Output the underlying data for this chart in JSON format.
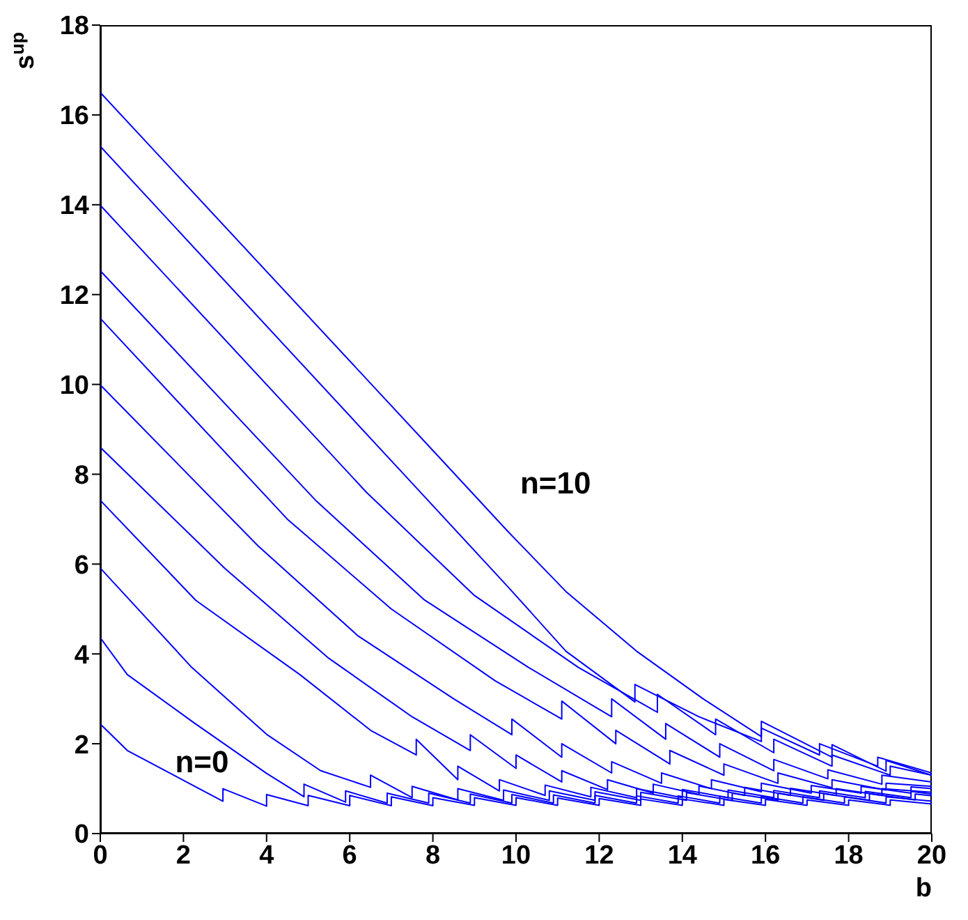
{
  "chart_data": {
    "type": "line",
    "xlabel": "b",
    "ylabel": "s$^{up}$",
    "xlim": [
      0,
      20
    ],
    "xticks": [
      0,
      2,
      4,
      6,
      8,
      10,
      12,
      14,
      16,
      18,
      20
    ],
    "ylim": [
      0,
      18
    ],
    "yticks": [
      0,
      2,
      4,
      6,
      8,
      10,
      12,
      14,
      16,
      18
    ],
    "grid": false,
    "legend": false,
    "marker": "none",
    "line_style": "solid",
    "annotations": [
      "n=10",
      "n=0"
    ],
    "series": [
      {
        "color": "#0000ff",
        "x": [
          0,
          0.65,
          2.95,
          2.95,
          4.0,
          4.0,
          5.0,
          5.0,
          6.0,
          6.0,
          7.0,
          7.0,
          8,
          8,
          9,
          9,
          10,
          10,
          11,
          11,
          12,
          12,
          13,
          13,
          14,
          14,
          15,
          15,
          16,
          16,
          17,
          17,
          18,
          18,
          19,
          19,
          20
        ],
        "values": [
          2.44,
          1.85,
          0.72,
          1.0,
          0.61,
          0.87,
          0.62,
          0.85,
          0.62,
          0.85,
          0.62,
          0.82,
          0.62,
          0.8,
          0.63,
          0.8,
          0.63,
          0.8,
          0.63,
          0.79,
          0.63,
          0.78,
          0.63,
          0.77,
          0.63,
          0.77,
          0.63,
          0.76,
          0.63,
          0.76,
          0.63,
          0.75,
          0.63,
          0.75,
          0.63,
          0.75,
          0.66
        ]
      },
      {
        "color": "#0000ff",
        "x": [
          0,
          0.65,
          2.25,
          4.0,
          4.9,
          4.9,
          5.9,
          5.9,
          6.9,
          6.9,
          7.9,
          7.9,
          8.9,
          8.9,
          9.9,
          9.9,
          10.9,
          10.9,
          11.9,
          11.9,
          12.9,
          12.9,
          13.9,
          13.9,
          14.9,
          14.9,
          15.9,
          15.9,
          16.9,
          16.9,
          17.9,
          17.9,
          18.9,
          18.9,
          20
        ],
        "values": [
          4.36,
          3.54,
          2.47,
          1.34,
          0.82,
          1.1,
          0.7,
          0.95,
          0.68,
          0.9,
          0.68,
          0.9,
          0.68,
          0.88,
          0.68,
          0.87,
          0.68,
          0.86,
          0.68,
          0.85,
          0.68,
          0.84,
          0.68,
          0.84,
          0.68,
          0.83,
          0.68,
          0.83,
          0.68,
          0.82,
          0.68,
          0.82,
          0.68,
          0.82,
          0.72
        ]
      },
      {
        "color": "#0000ff",
        "x": [
          0,
          2.2,
          4.0,
          5.3,
          6.5,
          6.5,
          7.5,
          7.5,
          8.6,
          8.6,
          9.7,
          9.7,
          10.8,
          10.8,
          11.9,
          11.9,
          13,
          13,
          14.1,
          14.1,
          15.2,
          15.2,
          16.3,
          16.3,
          17.4,
          17.4,
          18.5,
          18.5,
          19.6,
          19.6,
          20
        ],
        "values": [
          5.91,
          3.7,
          2.21,
          1.4,
          1.03,
          1.3,
          0.8,
          1.05,
          0.75,
          1.0,
          0.74,
          0.97,
          0.74,
          0.95,
          0.74,
          0.93,
          0.74,
          0.92,
          0.74,
          0.91,
          0.74,
          0.9,
          0.74,
          0.9,
          0.74,
          0.89,
          0.74,
          0.89,
          0.75,
          0.88,
          0.84
        ]
      },
      {
        "color": "#0000ff",
        "x": [
          0,
          2.3,
          4.8,
          6.5,
          7.6,
          7.6,
          8.6,
          8.6,
          9.6,
          9.6,
          10.7,
          10.7,
          11.8,
          11.8,
          12.9,
          12.9,
          14,
          14,
          15.1,
          15.1,
          16.2,
          16.2,
          17.3,
          17.3,
          18.4,
          18.4,
          19.5,
          19.5,
          20
        ],
        "values": [
          7.42,
          5.19,
          3.54,
          2.3,
          1.75,
          2.1,
          1.2,
          1.5,
          0.95,
          1.2,
          0.85,
          1.08,
          0.82,
          1.03,
          0.8,
          1.0,
          0.8,
          0.98,
          0.8,
          0.97,
          0.8,
          0.96,
          0.8,
          0.95,
          0.8,
          0.94,
          0.8,
          0.94,
          0.88
        ]
      },
      {
        "color": "#0000ff",
        "x": [
          0,
          3,
          5.5,
          7.5,
          8.9,
          8.9,
          10,
          10,
          11.1,
          11.1,
          12.2,
          12.2,
          13.3,
          13.3,
          14.4,
          14.4,
          15.5,
          15.5,
          16.6,
          16.6,
          17.7,
          17.7,
          18.8,
          18.8,
          20
        ],
        "values": [
          8.6,
          5.9,
          3.9,
          2.6,
          1.85,
          2.2,
          1.45,
          1.75,
          1.15,
          1.4,
          0.98,
          1.2,
          0.9,
          1.1,
          0.87,
          1.06,
          0.85,
          1.03,
          0.85,
          1.01,
          0.85,
          1.0,
          0.85,
          1.0,
          0.92
        ]
      },
      {
        "color": "#0000ff",
        "x": [
          0,
          3.8,
          6.2,
          8.5,
          9.9,
          9.9,
          11.1,
          11.1,
          12.3,
          12.3,
          13.5,
          13.5,
          14.7,
          14.7,
          15.9,
          15.9,
          17.1,
          17.1,
          18.3,
          18.3,
          19.5,
          19.5,
          20
        ],
        "values": [
          9.99,
          6.4,
          4.4,
          3.0,
          2.2,
          2.55,
          1.7,
          2.0,
          1.35,
          1.6,
          1.12,
          1.35,
          1.0,
          1.2,
          0.93,
          1.12,
          0.9,
          1.07,
          0.9,
          1.05,
          0.9,
          1.04,
          1.0
        ]
      },
      {
        "color": "#0000ff",
        "x": [
          0,
          4.5,
          7,
          9.5,
          11.1,
          11.1,
          12.4,
          12.4,
          13.7,
          13.7,
          15,
          15,
          16.3,
          16.3,
          17.6,
          17.6,
          18.9,
          18.9,
          20
        ],
        "values": [
          11.47,
          7.0,
          5.0,
          3.4,
          2.55,
          2.95,
          2.0,
          2.3,
          1.55,
          1.85,
          1.3,
          1.55,
          1.12,
          1.35,
          1.02,
          1.2,
          0.97,
          1.12,
          1.05
        ]
      },
      {
        "color": "#0000ff",
        "x": [
          0,
          5.2,
          7.8,
          10.3,
          12.3,
          12.3,
          13.6,
          13.6,
          14.9,
          14.9,
          16.2,
          16.2,
          17.5,
          17.5,
          18.8,
          18.8,
          20
        ],
        "values": [
          12.53,
          7.4,
          5.2,
          3.7,
          2.6,
          3.0,
          2.1,
          2.45,
          1.7,
          2.0,
          1.4,
          1.65,
          1.22,
          1.42,
          1.1,
          1.3,
          1.15
        ]
      },
      {
        "color": "#0000ff",
        "x": [
          0,
          6.4,
          9,
          11.5,
          13.4,
          13.4,
          14.8,
          14.8,
          16.2,
          16.2,
          17.6,
          17.6,
          19,
          19,
          20
        ],
        "values": [
          13.99,
          7.6,
          5.3,
          3.7,
          2.7,
          3.1,
          2.2,
          2.55,
          1.8,
          2.1,
          1.5,
          1.75,
          1.3,
          1.5,
          1.3
        ]
      },
      {
        "color": "#0000ff",
        "x": [
          0,
          7.3,
          9.8,
          11.2,
          12.86,
          12.86,
          14.4,
          15.9,
          15.9,
          17.3,
          17.3,
          18.7,
          18.7,
          20
        ],
        "values": [
          15.3,
          8.0,
          5.5,
          4.06,
          2.93,
          3.32,
          2.6,
          2.05,
          2.35,
          1.75,
          2.0,
          1.5,
          1.7,
          1.35
        ]
      },
      {
        "color": "#0000ff",
        "x": [
          0,
          8.1,
          9.8,
          11.2,
          12.9,
          14.5,
          15.9,
          15.9,
          17.6,
          17.6,
          18.9,
          18.9,
          20
        ],
        "values": [
          16.5,
          8.43,
          6.73,
          5.39,
          4.06,
          3.0,
          2.16,
          2.5,
          1.7,
          1.98,
          1.39,
          1.63,
          1.3
        ]
      }
    ]
  }
}
